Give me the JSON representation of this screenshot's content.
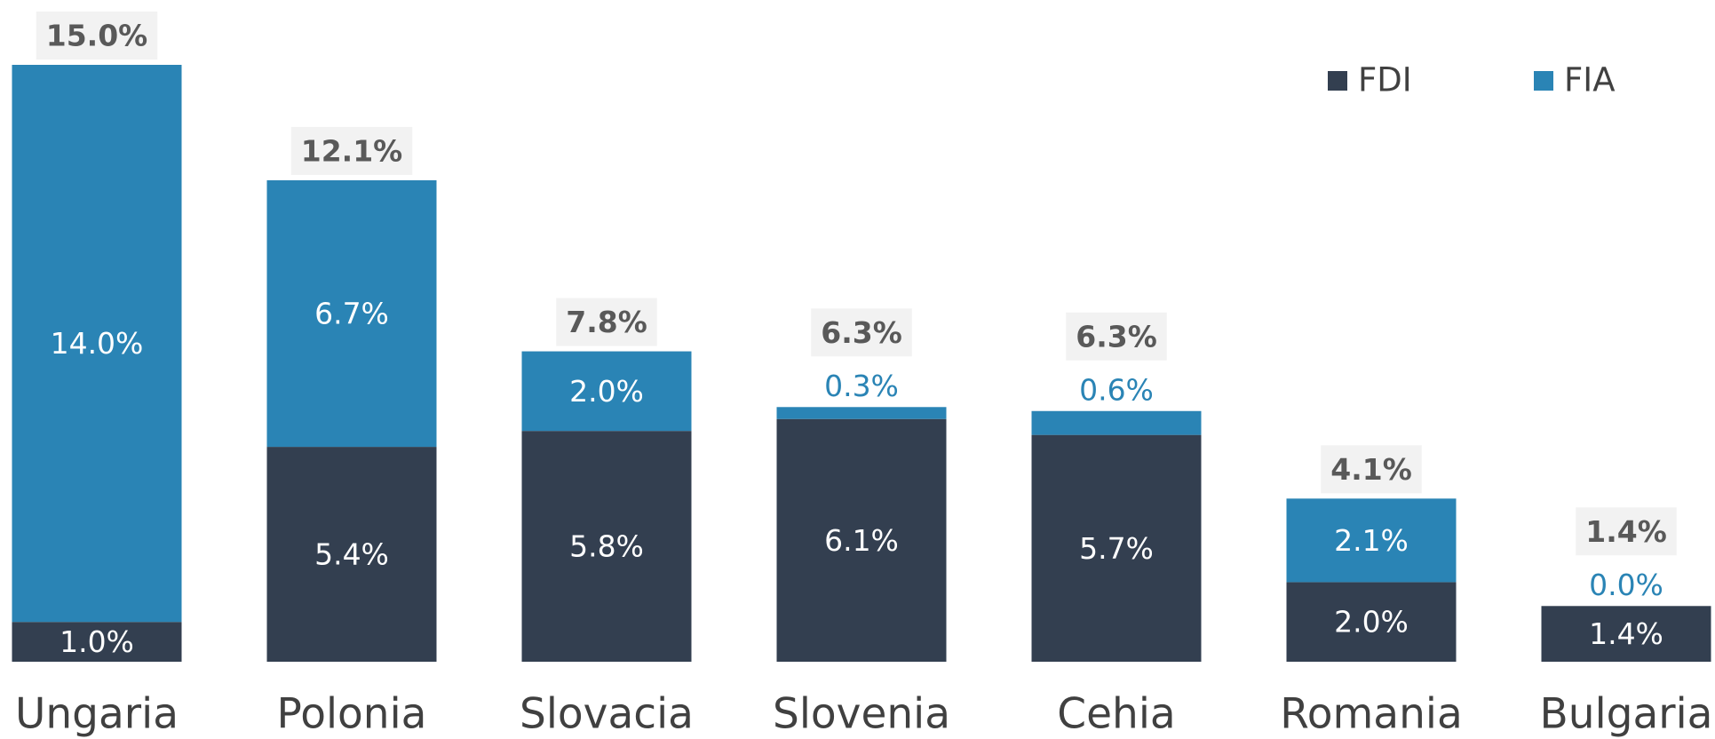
{
  "chart_data": {
    "type": "stacked_bar",
    "categories": [
      "Ungaria",
      "Polonia",
      "Slovacia",
      "Slovenia",
      "Cehia",
      "Romania",
      "Bulgaria"
    ],
    "series": [
      {
        "name": "FDI",
        "color": "#333f50",
        "values": [
          1.0,
          5.4,
          5.8,
          6.1,
          5.7,
          2.0,
          1.4
        ],
        "value_labels": [
          "1.0%",
          "5.4%",
          "5.8%",
          "6.1%",
          "5.7%",
          "2.0%",
          "1.4%"
        ]
      },
      {
        "name": "FIA",
        "color": "#2a84b5",
        "values": [
          14.0,
          6.7,
          2.0,
          0.3,
          0.6,
          2.1,
          0.0
        ],
        "value_labels": [
          "14.0%",
          "6.7%",
          "2.0%",
          "0.3%",
          "0.6%",
          "2.1%",
          "0.0%"
        ]
      }
    ],
    "totals": [
      15.0,
      12.1,
      7.8,
      6.3,
      6.3,
      4.1,
      1.4
    ],
    "total_labels": [
      "15.0%",
      "12.1%",
      "7.8%",
      "6.3%",
      "6.3%",
      "4.1%",
      "1.4%"
    ],
    "ylim": [
      0,
      15
    ],
    "legend": "top-right"
  }
}
